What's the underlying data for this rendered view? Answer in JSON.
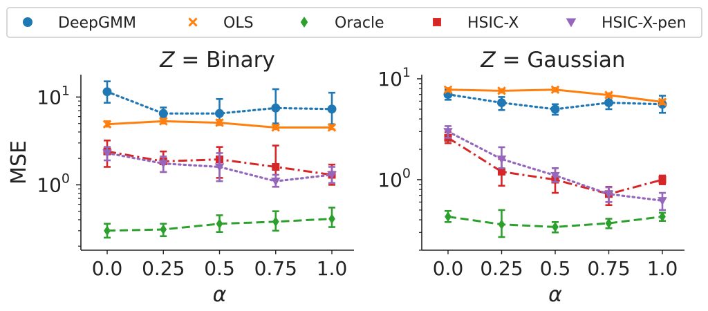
{
  "legend": {
    "entries": [
      {
        "label": "DeepGMM",
        "marker": "circle",
        "color": "#1f77b4"
      },
      {
        "label": "OLS",
        "marker": "x",
        "color": "#ff7f0e"
      },
      {
        "label": "Oracle",
        "marker": "diamond",
        "color": "#2ca02c"
      },
      {
        "label": "HSIC-X",
        "marker": "square",
        "color": "#d62728"
      },
      {
        "label": "HSIC-X-pen",
        "marker": "triangle-down",
        "color": "#9467bd"
      }
    ]
  },
  "chart_data": [
    {
      "type": "line",
      "title": "Z = Binary",
      "title_italic": "Z",
      "title_rest": " = Binary",
      "xlabel": "α",
      "ylabel": "MSE",
      "y_scale": "log",
      "ylim": [
        0.18,
        18
      ],
      "categories": [
        "0.0",
        "0.25",
        "0.5",
        "0.75",
        "1.0"
      ],
      "y_ticks": [
        {
          "value": 1,
          "base": "10",
          "exp": "0"
        },
        {
          "value": 10,
          "base": "10",
          "exp": "1"
        }
      ],
      "series": [
        {
          "name": "DeepGMM",
          "color": "#1f77b4",
          "marker": "circle",
          "linestyle": "dotted",
          "values": [
            11.5,
            6.5,
            6.5,
            7.5,
            7.3
          ],
          "err_low": [
            8.6,
            5.9,
            4.9,
            5.0,
            4.9
          ],
          "err_high": [
            15.1,
            7.6,
            9.5,
            12.3,
            11.2
          ]
        },
        {
          "name": "OLS",
          "color": "#ff7f0e",
          "marker": "x",
          "linestyle": "solid",
          "values": [
            4.9,
            5.3,
            5.1,
            4.5,
            4.5
          ],
          "err_low": [
            4.6,
            5.0,
            4.8,
            4.3,
            4.3
          ],
          "err_high": [
            5.3,
            5.6,
            5.5,
            4.8,
            4.8
          ]
        },
        {
          "name": "Oracle",
          "color": "#2ca02c",
          "marker": "diamond",
          "linestyle": "dashed",
          "values": [
            0.3,
            0.31,
            0.36,
            0.38,
            0.41
          ],
          "err_low": [
            0.25,
            0.26,
            0.29,
            0.3,
            0.33
          ],
          "err_high": [
            0.36,
            0.36,
            0.45,
            0.5,
            0.55
          ]
        },
        {
          "name": "HSIC-X",
          "color": "#d62728",
          "marker": "square",
          "linestyle": "dashdot",
          "values": [
            2.4,
            1.85,
            1.95,
            1.6,
            1.3
          ],
          "err_low": [
            1.6,
            1.4,
            1.2,
            0.95,
            1.0
          ],
          "err_high": [
            3.2,
            2.4,
            2.7,
            2.8,
            1.7
          ]
        },
        {
          "name": "HSIC-X-pen",
          "color": "#9467bd",
          "marker": "triangle-down",
          "linestyle": "dotted",
          "values": [
            2.3,
            1.75,
            1.6,
            1.1,
            1.3
          ],
          "err_low": [
            1.9,
            1.4,
            1.1,
            0.95,
            1.05
          ],
          "err_high": [
            2.7,
            2.1,
            2.3,
            1.3,
            1.6
          ]
        }
      ]
    },
    {
      "type": "line",
      "title": "Z = Gaussian",
      "title_italic": "Z",
      "title_rest": " = Gaussian",
      "xlabel": "α",
      "ylabel": "",
      "y_scale": "log",
      "ylim": [
        0.2,
        11
      ],
      "categories": [
        "0.0",
        "0.25",
        "0.5",
        "0.75",
        "1.0"
      ],
      "y_ticks": [
        {
          "value": 1,
          "base": "10",
          "exp": "0"
        },
        {
          "value": 10,
          "base": "10",
          "exp": "1"
        }
      ],
      "series": [
        {
          "name": "DeepGMM",
          "color": "#1f77b4",
          "marker": "circle",
          "linestyle": "dotted",
          "values": [
            7.0,
            5.8,
            5.0,
            5.8,
            5.6
          ],
          "err_low": [
            6.2,
            4.9,
            4.4,
            5.0,
            4.6
          ],
          "err_high": [
            7.8,
            6.6,
            5.6,
            6.6,
            6.8
          ]
        },
        {
          "name": "OLS",
          "color": "#ff7f0e",
          "marker": "x",
          "linestyle": "solid",
          "values": [
            7.8,
            7.6,
            7.8,
            6.9,
            5.9
          ],
          "err_low": [
            7.5,
            7.3,
            7.5,
            6.6,
            5.6
          ],
          "err_high": [
            8.1,
            7.9,
            8.1,
            7.2,
            6.2
          ]
        },
        {
          "name": "Oracle",
          "color": "#2ca02c",
          "marker": "diamond",
          "linestyle": "dashed",
          "values": [
            0.43,
            0.36,
            0.34,
            0.37,
            0.43
          ],
          "err_low": [
            0.38,
            0.27,
            0.3,
            0.33,
            0.39
          ],
          "err_high": [
            0.49,
            0.5,
            0.38,
            0.41,
            0.47
          ]
        },
        {
          "name": "HSIC-X",
          "color": "#d62728",
          "marker": "square",
          "linestyle": "dashdot",
          "values": [
            2.6,
            1.2,
            1.0,
            0.72,
            1.0
          ],
          "err_low": [
            2.3,
            0.87,
            0.74,
            0.56,
            0.9
          ],
          "err_high": [
            2.95,
            1.6,
            1.3,
            0.85,
            1.1
          ]
        },
        {
          "name": "HSIC-X-pen",
          "color": "#9467bd",
          "marker": "triangle-down",
          "linestyle": "dotted",
          "values": [
            3.0,
            1.6,
            1.1,
            0.72,
            0.62
          ],
          "err_low": [
            2.6,
            1.3,
            0.95,
            0.6,
            0.5
          ],
          "err_high": [
            3.4,
            2.1,
            1.3,
            0.84,
            0.74
          ]
        }
      ]
    }
  ]
}
